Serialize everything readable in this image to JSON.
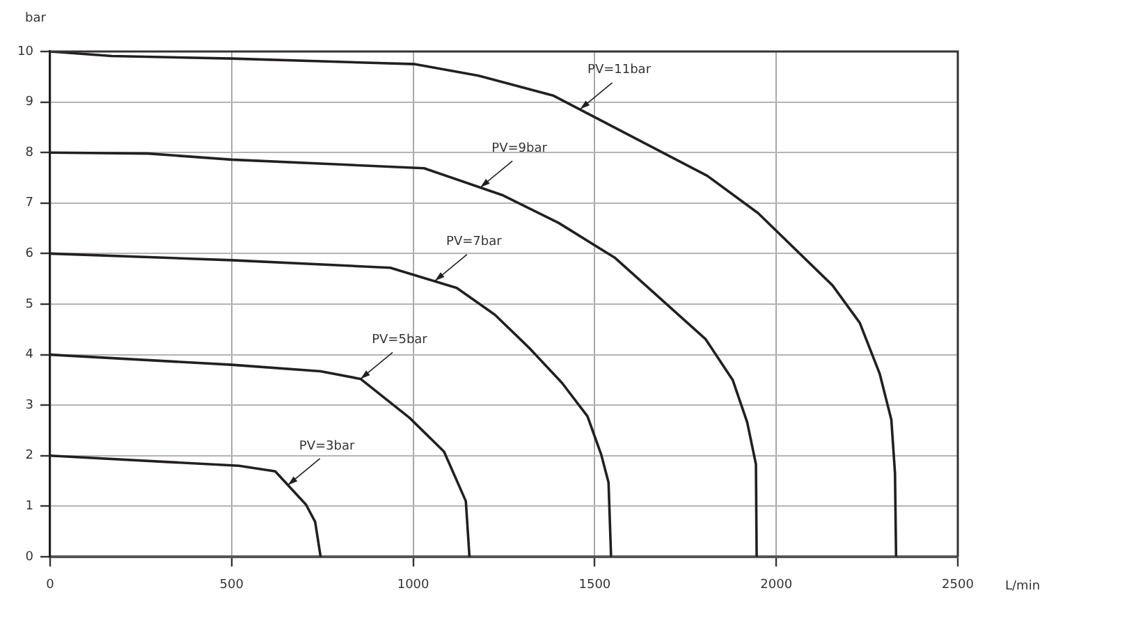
{
  "chart_data": {
    "type": "line",
    "xlabel": "L/min",
    "ylabel": "bar",
    "xlim": [
      0,
      2500
    ],
    "xticks": [
      0,
      500,
      1000,
      1500,
      2000,
      2500
    ],
    "ylim": [
      0,
      10
    ],
    "yticks": [
      0,
      1,
      2,
      3,
      4,
      5,
      6,
      7,
      8,
      9,
      10
    ],
    "grid": true,
    "marker": "none",
    "line_style": "solid",
    "series": [
      {
        "color": "#231f20",
        "x": [
          0,
          170,
          500,
          1005,
          1180,
          1385,
          1810,
          1950,
          2155,
          2230,
          2285,
          2317,
          2327,
          2330
        ],
        "values": [
          10.0,
          9.91,
          9.86,
          9.75,
          9.52,
          9.13,
          7.54,
          6.8,
          5.37,
          4.63,
          3.62,
          2.71,
          1.65,
          0
        ]
      },
      {
        "color": "#231f20",
        "x": [
          0,
          270,
          500,
          1030,
          1245,
          1400,
          1555,
          1805,
          1880,
          1920,
          1944,
          1946
        ],
        "values": [
          8.0,
          7.98,
          7.86,
          7.69,
          7.16,
          6.61,
          5.92,
          4.31,
          3.5,
          2.66,
          1.83,
          0
        ]
      },
      {
        "color": "#231f20",
        "x": [
          0,
          500,
          937,
          1120,
          1225,
          1320,
          1410,
          1480,
          1518,
          1538,
          1545
        ],
        "values": [
          6.0,
          5.87,
          5.72,
          5.32,
          4.79,
          4.13,
          3.44,
          2.78,
          2.02,
          1.47,
          0
        ]
      },
      {
        "color": "#231f20",
        "x": [
          0,
          500,
          745,
          855,
          990,
          1085,
          1145,
          1155
        ],
        "values": [
          4.0,
          3.8,
          3.67,
          3.52,
          2.75,
          2.08,
          1.1,
          0
        ]
      },
      {
        "color": "#231f20",
        "x": [
          0,
          520,
          620,
          705,
          730,
          745
        ],
        "values": [
          2.0,
          1.8,
          1.69,
          1.03,
          0.69,
          0
        ]
      }
    ],
    "annotations": [
      {
        "text": "PV=11bar",
        "x": 1460,
        "y": 8.86
      },
      {
        "text": "PV=9bar",
        "x": 1185,
        "y": 7.31
      },
      {
        "text": "PV=7bar",
        "x": 1060,
        "y": 5.46
      },
      {
        "text": "PV=5bar",
        "x": 855,
        "y": 3.52
      },
      {
        "text": "PV=3bar",
        "x": 655,
        "y": 1.42
      }
    ]
  }
}
